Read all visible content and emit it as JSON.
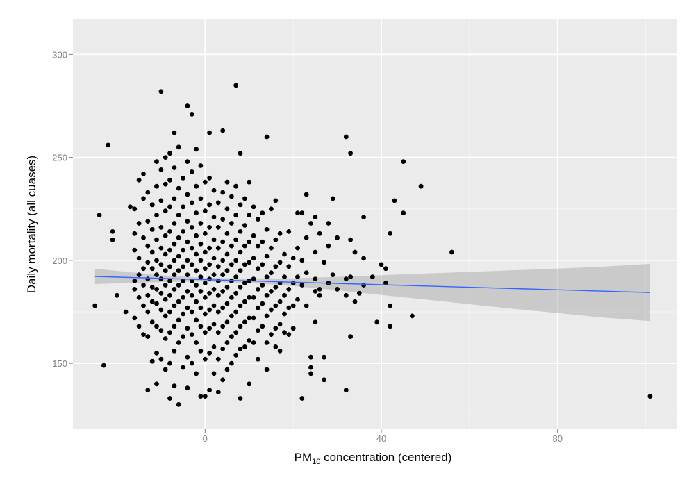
{
  "chart_data": {
    "type": "scatter",
    "title": "",
    "xlabel": {
      "prefix": "PM",
      "subscript": "10",
      "suffix": " concentration (centered)"
    },
    "ylabel": "Daily mortality (all cuases)",
    "xlim": [
      -30,
      107
    ],
    "ylim": [
      118,
      317
    ],
    "x_ticks": [
      0,
      40,
      80
    ],
    "x_minor_ticks": [
      -20,
      20,
      60,
      100
    ],
    "y_ticks": [
      150,
      200,
      250,
      300
    ],
    "y_minor_ticks": [
      125,
      175,
      225,
      275
    ],
    "x_tick_labels": [
      "0",
      "40",
      "80"
    ],
    "y_tick_labels": [
      "150",
      "200",
      "250",
      "300"
    ],
    "grid": true,
    "legend": "none",
    "colors": {
      "panel": "#ebebeb",
      "grid": "#ffffff",
      "point": "#000000",
      "fit_line": "#3366ff",
      "ribbon": "#999999"
    },
    "fit_line": {
      "x": [
        -25,
        101
      ],
      "y": [
        192.2,
        184.4
      ]
    },
    "confidence_band": {
      "x": [
        -25,
        -10,
        0,
        10,
        20,
        30,
        40,
        50,
        60,
        70,
        80,
        90,
        101
      ],
      "lower": [
        188.5,
        189.5,
        189.7,
        189.0,
        187.5,
        185.5,
        183.2,
        181.0,
        178.7,
        176.5,
        174.4,
        172.3,
        170.5
      ],
      "upper": [
        195.9,
        192.8,
        191.5,
        191.2,
        191.3,
        192.0,
        192.8,
        193.6,
        194.4,
        195.2,
        196.0,
        196.9,
        198.3
      ]
    },
    "points": [
      [
        -25,
        178
      ],
      [
        -24,
        222
      ],
      [
        -23,
        149
      ],
      [
        -22,
        256
      ],
      [
        -21,
        214
      ],
      [
        -21,
        210
      ],
      [
        -20,
        183
      ],
      [
        -18,
        175
      ],
      [
        -17,
        226
      ],
      [
        -16,
        225
      ],
      [
        -16,
        213
      ],
      [
        -16,
        205
      ],
      [
        -16,
        190
      ],
      [
        -16,
        186
      ],
      [
        -16,
        172
      ],
      [
        -15,
        239
      ],
      [
        -15,
        218
      ],
      [
        -15,
        201
      ],
      [
        -15,
        193
      ],
      [
        -15,
        182
      ],
      [
        -15,
        168
      ],
      [
        -14,
        242
      ],
      [
        -14,
        230
      ],
      [
        -14,
        211
      ],
      [
        -14,
        196
      ],
      [
        -14,
        188
      ],
      [
        -14,
        178
      ],
      [
        -14,
        164
      ],
      [
        -13,
        233
      ],
      [
        -13,
        219
      ],
      [
        -13,
        207
      ],
      [
        -13,
        199
      ],
      [
        -13,
        191
      ],
      [
        -13,
        183
      ],
      [
        -13,
        175
      ],
      [
        -13,
        163
      ],
      [
        -13,
        137
      ],
      [
        -12,
        227
      ],
      [
        -12,
        215
      ],
      [
        -12,
        204
      ],
      [
        -12,
        196
      ],
      [
        -12,
        187
      ],
      [
        -12,
        180
      ],
      [
        -12,
        170
      ],
      [
        -12,
        151
      ],
      [
        -11,
        248
      ],
      [
        -11,
        236
      ],
      [
        -11,
        222
      ],
      [
        -11,
        210
      ],
      [
        -11,
        200
      ],
      [
        -11,
        193
      ],
      [
        -11,
        186
      ],
      [
        -11,
        179
      ],
      [
        -11,
        168
      ],
      [
        -11,
        155
      ],
      [
        -11,
        140
      ],
      [
        -10,
        282
      ],
      [
        -10,
        244
      ],
      [
        -10,
        229
      ],
      [
        -10,
        216
      ],
      [
        -10,
        206
      ],
      [
        -10,
        198
      ],
      [
        -10,
        191
      ],
      [
        -10,
        184
      ],
      [
        -10,
        176
      ],
      [
        -10,
        166
      ],
      [
        -10,
        152
      ],
      [
        -9,
        250
      ],
      [
        -9,
        237
      ],
      [
        -9,
        224
      ],
      [
        -9,
        212
      ],
      [
        -9,
        203
      ],
      [
        -9,
        195
      ],
      [
        -9,
        188
      ],
      [
        -9,
        181
      ],
      [
        -9,
        173
      ],
      [
        -9,
        162
      ],
      [
        -9,
        147
      ],
      [
        -8,
        252
      ],
      [
        -8,
        239
      ],
      [
        -8,
        226
      ],
      [
        -8,
        214
      ],
      [
        -8,
        205
      ],
      [
        -8,
        197
      ],
      [
        -8,
        190
      ],
      [
        -8,
        183
      ],
      [
        -8,
        175
      ],
      [
        -8,
        165
      ],
      [
        -8,
        150
      ],
      [
        -8,
        133
      ],
      [
        -7,
        262
      ],
      [
        -7,
        245
      ],
      [
        -7,
        230
      ],
      [
        -7,
        218
      ],
      [
        -7,
        208
      ],
      [
        -7,
        200
      ],
      [
        -7,
        193
      ],
      [
        -7,
        186
      ],
      [
        -7,
        178
      ],
      [
        -7,
        168
      ],
      [
        -7,
        156
      ],
      [
        -7,
        139
      ],
      [
        -6,
        255
      ],
      [
        -6,
        235
      ],
      [
        -6,
        222
      ],
      [
        -6,
        211
      ],
      [
        -6,
        202
      ],
      [
        -6,
        195
      ],
      [
        -6,
        188
      ],
      [
        -6,
        180
      ],
      [
        -6,
        171
      ],
      [
        -6,
        160
      ],
      [
        -6,
        130
      ],
      [
        -5,
        240
      ],
      [
        -5,
        226
      ],
      [
        -5,
        214
      ],
      [
        -5,
        205
      ],
      [
        -5,
        197
      ],
      [
        -5,
        190
      ],
      [
        -5,
        182
      ],
      [
        -5,
        174
      ],
      [
        -5,
        163
      ],
      [
        -5,
        148
      ],
      [
        -4,
        275
      ],
      [
        -4,
        248
      ],
      [
        -4,
        232
      ],
      [
        -4,
        219
      ],
      [
        -4,
        209
      ],
      [
        -4,
        200
      ],
      [
        -4,
        193
      ],
      [
        -4,
        185
      ],
      [
        -4,
        177
      ],
      [
        -4,
        167
      ],
      [
        -4,
        153
      ],
      [
        -4,
        138
      ],
      [
        -3,
        271
      ],
      [
        -3,
        243
      ],
      [
        -3,
        228
      ],
      [
        -3,
        216
      ],
      [
        -3,
        206
      ],
      [
        -3,
        198
      ],
      [
        -3,
        190
      ],
      [
        -3,
        183
      ],
      [
        -3,
        175
      ],
      [
        -3,
        164
      ],
      [
        -3,
        150
      ],
      [
        -2,
        254
      ],
      [
        -2,
        236
      ],
      [
        -2,
        223
      ],
      [
        -2,
        212
      ],
      [
        -2,
        203
      ],
      [
        -2,
        195
      ],
      [
        -2,
        188
      ],
      [
        -2,
        180
      ],
      [
        -2,
        171
      ],
      [
        -2,
        160
      ],
      [
        -2,
        145
      ],
      [
        -1,
        246
      ],
      [
        -1,
        230
      ],
      [
        -1,
        218
      ],
      [
        -1,
        208
      ],
      [
        -1,
        200
      ],
      [
        -1,
        192
      ],
      [
        -1,
        185
      ],
      [
        -1,
        177
      ],
      [
        -1,
        168
      ],
      [
        -1,
        156
      ],
      [
        -1,
        134
      ],
      [
        0,
        238
      ],
      [
        0,
        224
      ],
      [
        0,
        213
      ],
      [
        0,
        204
      ],
      [
        0,
        196
      ],
      [
        0,
        189
      ],
      [
        0,
        182
      ],
      [
        0,
        174
      ],
      [
        0,
        165
      ],
      [
        0,
        152
      ],
      [
        0,
        134
      ],
      [
        1,
        262
      ],
      [
        1,
        240
      ],
      [
        1,
        227
      ],
      [
        1,
        216
      ],
      [
        1,
        206
      ],
      [
        1,
        198
      ],
      [
        1,
        191
      ],
      [
        1,
        184
      ],
      [
        1,
        176
      ],
      [
        1,
        167
      ],
      [
        1,
        155
      ],
      [
        1,
        137
      ],
      [
        2,
        234
      ],
      [
        2,
        221
      ],
      [
        2,
        210
      ],
      [
        2,
        201
      ],
      [
        2,
        193
      ],
      [
        2,
        186
      ],
      [
        2,
        178
      ],
      [
        2,
        169
      ],
      [
        2,
        158
      ],
      [
        2,
        145
      ],
      [
        3,
        228
      ],
      [
        3,
        216
      ],
      [
        3,
        206
      ],
      [
        3,
        197
      ],
      [
        3,
        190
      ],
      [
        3,
        183
      ],
      [
        3,
        175
      ],
      [
        3,
        165
      ],
      [
        3,
        152
      ],
      [
        3,
        136
      ],
      [
        4,
        263
      ],
      [
        4,
        233
      ],
      [
        4,
        220
      ],
      [
        4,
        209
      ],
      [
        4,
        200
      ],
      [
        4,
        193
      ],
      [
        4,
        185
      ],
      [
        4,
        177
      ],
      [
        4,
        168
      ],
      [
        4,
        157
      ],
      [
        4,
        142
      ],
      [
        5,
        238
      ],
      [
        5,
        225
      ],
      [
        5,
        213
      ],
      [
        5,
        203
      ],
      [
        5,
        195
      ],
      [
        5,
        187
      ],
      [
        5,
        179
      ],
      [
        5,
        170
      ],
      [
        5,
        160
      ],
      [
        5,
        147
      ],
      [
        6,
        231
      ],
      [
        6,
        218
      ],
      [
        6,
        207
      ],
      [
        6,
        198
      ],
      [
        6,
        190
      ],
      [
        6,
        182
      ],
      [
        6,
        173
      ],
      [
        6,
        163
      ],
      [
        6,
        150
      ],
      [
        7,
        285
      ],
      [
        7,
        236
      ],
      [
        7,
        222
      ],
      [
        7,
        210
      ],
      [
        7,
        200
      ],
      [
        7,
        192
      ],
      [
        7,
        184
      ],
      [
        7,
        175
      ],
      [
        7,
        165
      ],
      [
        7,
        154
      ],
      [
        8,
        252
      ],
      [
        8,
        227
      ],
      [
        8,
        214
      ],
      [
        8,
        204
      ],
      [
        8,
        195
      ],
      [
        8,
        187
      ],
      [
        8,
        178
      ],
      [
        8,
        168
      ],
      [
        8,
        157
      ],
      [
        8,
        133
      ],
      [
        9,
        230
      ],
      [
        9,
        217
      ],
      [
        9,
        207
      ],
      [
        9,
        198
      ],
      [
        9,
        189
      ],
      [
        9,
        180
      ],
      [
        9,
        170
      ],
      [
        9,
        158
      ],
      [
        10,
        238
      ],
      [
        10,
        222
      ],
      [
        10,
        209
      ],
      [
        10,
        199
      ],
      [
        10,
        190
      ],
      [
        10,
        182
      ],
      [
        10,
        172
      ],
      [
        10,
        161
      ],
      [
        10,
        140
      ],
      [
        11,
        226
      ],
      [
        11,
        212
      ],
      [
        11,
        201
      ],
      [
        11,
        191
      ],
      [
        11,
        182
      ],
      [
        11,
        172
      ],
      [
        11,
        160
      ],
      [
        12,
        220
      ],
      [
        12,
        207
      ],
      [
        12,
        196
      ],
      [
        12,
        186
      ],
      [
        12,
        177
      ],
      [
        12,
        166
      ],
      [
        12,
        152
      ],
      [
        13,
        223
      ],
      [
        13,
        209
      ],
      [
        13,
        198
      ],
      [
        13,
        188
      ],
      [
        13,
        179
      ],
      [
        13,
        168
      ],
      [
        14,
        260
      ],
      [
        14,
        215
      ],
      [
        14,
        202
      ],
      [
        14,
        192
      ],
      [
        14,
        183
      ],
      [
        14,
        173
      ],
      [
        14,
        160
      ],
      [
        14,
        147
      ],
      [
        15,
        225
      ],
      [
        15,
        206
      ],
      [
        15,
        194
      ],
      [
        15,
        185
      ],
      [
        15,
        176
      ],
      [
        15,
        164
      ],
      [
        16,
        229
      ],
      [
        16,
        210
      ],
      [
        16,
        197
      ],
      [
        16,
        187
      ],
      [
        16,
        178
      ],
      [
        16,
        167
      ],
      [
        16,
        158
      ],
      [
        17,
        213
      ],
      [
        17,
        199
      ],
      [
        17,
        189
      ],
      [
        17,
        180
      ],
      [
        17,
        169
      ],
      [
        17,
        156
      ],
      [
        18,
        203
      ],
      [
        18,
        192
      ],
      [
        18,
        183
      ],
      [
        18,
        174
      ],
      [
        18,
        165
      ],
      [
        19,
        214
      ],
      [
        19,
        197
      ],
      [
        19,
        186
      ],
      [
        19,
        177
      ],
      [
        19,
        164
      ],
      [
        20,
        201
      ],
      [
        20,
        189
      ],
      [
        20,
        178
      ],
      [
        20,
        167
      ],
      [
        21,
        223
      ],
      [
        21,
        206
      ],
      [
        21,
        192
      ],
      [
        21,
        181
      ],
      [
        22,
        223
      ],
      [
        22,
        200
      ],
      [
        22,
        188
      ],
      [
        22,
        133
      ],
      [
        23,
        232
      ],
      [
        23,
        211
      ],
      [
        23,
        194
      ],
      [
        23,
        178
      ],
      [
        24,
        218
      ],
      [
        24,
        153
      ],
      [
        24,
        148
      ],
      [
        24,
        145
      ],
      [
        25,
        221
      ],
      [
        25,
        204
      ],
      [
        25,
        191
      ],
      [
        25,
        185
      ],
      [
        25,
        170
      ],
      [
        26,
        213
      ],
      [
        26,
        186
      ],
      [
        26,
        183
      ],
      [
        27,
        199
      ],
      [
        27,
        153
      ],
      [
        27,
        142
      ],
      [
        28,
        218
      ],
      [
        28,
        207
      ],
      [
        28,
        189
      ],
      [
        29,
        230
      ],
      [
        29,
        193
      ],
      [
        30,
        211
      ],
      [
        30,
        186
      ],
      [
        32,
        260
      ],
      [
        32,
        191
      ],
      [
        32,
        183
      ],
      [
        32,
        137
      ],
      [
        33,
        252
      ],
      [
        33,
        210
      ],
      [
        33,
        192
      ],
      [
        33,
        163
      ],
      [
        34,
        204
      ],
      [
        34,
        180
      ],
      [
        35,
        184
      ],
      [
        36,
        221
      ],
      [
        36,
        201
      ],
      [
        36,
        188
      ],
      [
        38,
        192
      ],
      [
        39,
        170
      ],
      [
        40,
        198
      ],
      [
        41,
        196
      ],
      [
        41,
        189
      ],
      [
        42,
        213
      ],
      [
        42,
        178
      ],
      [
        42,
        168
      ],
      [
        43,
        229
      ],
      [
        45,
        248
      ],
      [
        45,
        223
      ],
      [
        47,
        173
      ],
      [
        49,
        236
      ],
      [
        56,
        204
      ],
      [
        101,
        134
      ]
    ]
  }
}
